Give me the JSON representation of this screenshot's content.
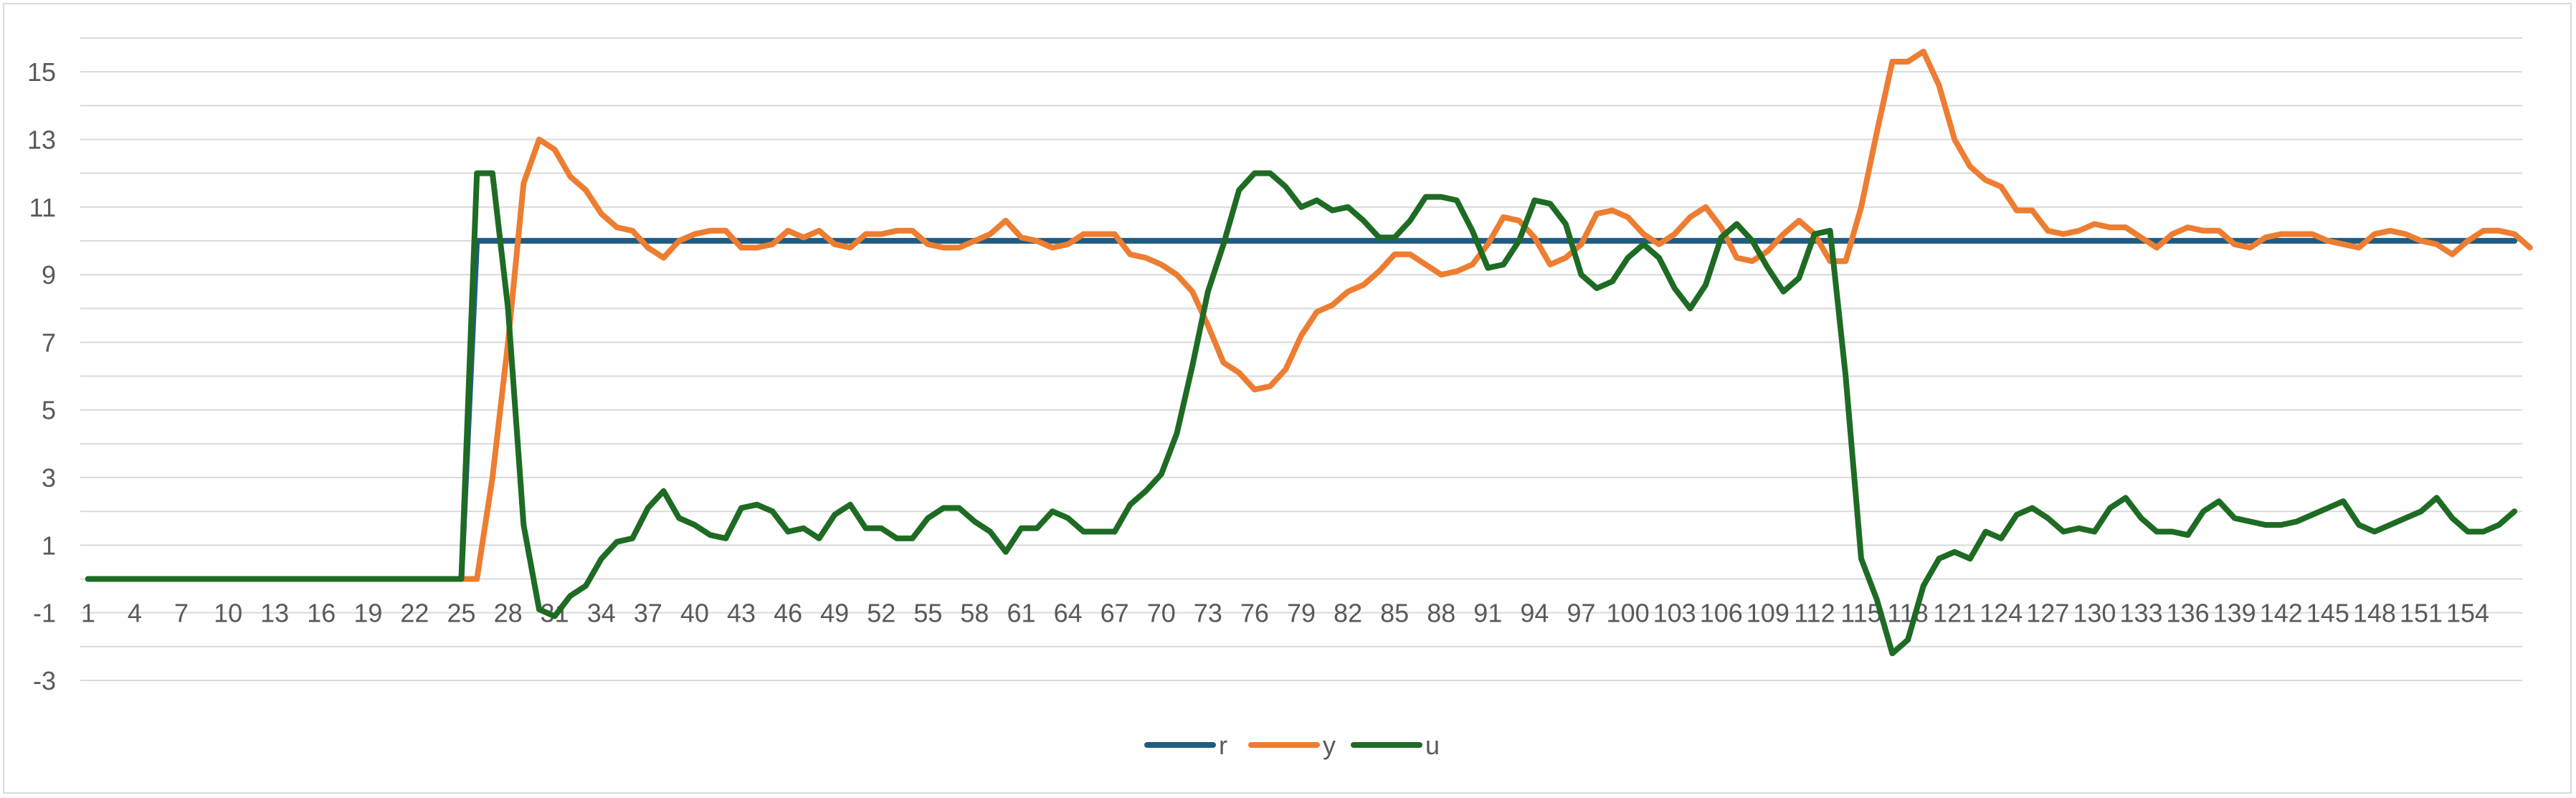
{
  "chart_data": {
    "type": "line",
    "title": "",
    "xlabel": "",
    "ylabel": "",
    "x_categories_count": 157,
    "x_tick_labels": [
      "1",
      "4",
      "7",
      "10",
      "13",
      "16",
      "19",
      "22",
      "25",
      "28",
      "31",
      "34",
      "37",
      "40",
      "43",
      "46",
      "49",
      "52",
      "55",
      "58",
      "61",
      "64",
      "67",
      "70",
      "73",
      "76",
      "79",
      "82",
      "85",
      "88",
      "91",
      "94",
      "97",
      "100",
      "103",
      "106",
      "109",
      "112",
      "115",
      "118",
      "121",
      "124",
      "127",
      "130",
      "133",
      "136",
      "139",
      "142",
      "145",
      "148",
      "151",
      "154"
    ],
    "x_tick_step": 3,
    "ylim": [
      -3,
      16
    ],
    "y_ticks": [
      15,
      13,
      11,
      9,
      7,
      5,
      3,
      1,
      -1,
      -3
    ],
    "y_gridlines": [
      16,
      15,
      14,
      13,
      12,
      11,
      10,
      9,
      8,
      7,
      6,
      5,
      4,
      3,
      2,
      1,
      0,
      -1,
      -2,
      -3
    ],
    "grid": true,
    "legend_position": "bottom",
    "series": [
      {
        "name": "r",
        "color": "#1f5c84",
        "values": [
          0,
          0,
          0,
          0,
          0,
          0,
          0,
          0,
          0,
          0,
          0,
          0,
          0,
          0,
          0,
          0,
          0,
          0,
          0,
          0,
          0,
          0,
          0,
          0,
          0,
          10,
          10,
          10,
          10,
          10,
          10,
          10,
          10,
          10,
          10,
          10,
          10,
          10,
          10,
          10,
          10,
          10,
          10,
          10,
          10,
          10,
          10,
          10,
          10,
          10,
          10,
          10,
          10,
          10,
          10,
          10,
          10,
          10,
          10,
          10,
          10,
          10,
          10,
          10,
          10,
          10,
          10,
          10,
          10,
          10,
          10,
          10,
          10,
          10,
          10,
          10,
          10,
          10,
          10,
          10,
          10,
          10,
          10,
          10,
          10,
          10,
          10,
          10,
          10,
          10,
          10,
          10,
          10,
          10,
          10,
          10,
          10,
          10,
          10,
          10,
          10,
          10,
          10,
          10,
          10,
          10,
          10,
          10,
          10,
          10,
          10,
          10,
          10,
          10,
          10,
          10,
          10,
          10,
          10,
          10,
          10,
          10,
          10,
          10,
          10,
          10,
          10,
          10,
          10,
          10,
          10,
          10,
          10,
          10,
          10,
          10,
          10,
          10,
          10,
          10,
          10,
          10,
          10,
          10,
          10,
          10,
          10,
          10,
          10,
          10,
          10,
          10,
          10,
          10,
          10,
          10,
          10
        ]
      },
      {
        "name": "y",
        "color": "#ed7d31",
        "values": [
          0,
          0,
          0,
          0,
          0,
          0,
          0,
          0,
          0,
          0,
          0,
          0,
          0,
          0,
          0,
          0,
          0,
          0,
          0,
          0,
          0,
          0,
          0,
          0,
          0,
          0,
          3,
          7,
          11.7,
          13,
          12.7,
          11.9,
          11.5,
          10.8,
          10.4,
          10.3,
          9.8,
          9.5,
          10,
          10.2,
          10.3,
          10.3,
          9.8,
          9.8,
          9.9,
          10.3,
          10.1,
          10.3,
          9.9,
          9.8,
          10.2,
          10.2,
          10.3,
          10.3,
          9.9,
          9.8,
          9.8,
          10,
          10.2,
          10.6,
          10.1,
          10,
          9.8,
          9.9,
          10.2,
          10.2,
          10.2,
          9.6,
          9.5,
          9.3,
          9,
          8.5,
          7.5,
          6.4,
          6.1,
          5.6,
          5.7,
          6.2,
          7.2,
          7.9,
          8.1,
          8.5,
          8.7,
          9.1,
          9.6,
          9.6,
          9.3,
          9,
          9.1,
          9.3,
          9.9,
          10.7,
          10.6,
          10.1,
          9.3,
          9.5,
          9.9,
          10.8,
          10.9,
          10.7,
          10.2,
          9.9,
          10.2,
          10.7,
          11,
          10.4,
          9.5,
          9.4,
          9.7,
          10.2,
          10.6,
          10.2,
          9.4,
          9.4,
          11,
          13.2,
          15.3,
          15.3,
          15.6,
          14.6,
          13,
          12.2,
          11.8,
          11.6,
          10.9,
          10.9,
          10.3,
          10.2,
          10.3,
          10.5,
          10.4,
          10.4,
          10.1,
          9.8,
          10.2,
          10.4,
          10.3,
          10.3,
          9.9,
          9.8,
          10.1,
          10.2,
          10.2,
          10.2,
          10,
          9.9,
          9.8,
          10.2,
          10.3,
          10.2,
          10,
          9.9,
          9.6,
          10,
          10.3,
          10.3,
          10.2,
          9.8
        ]
      },
      {
        "name": "u",
        "color": "#1e6b24",
        "values": [
          0,
          0,
          0,
          0,
          0,
          0,
          0,
          0,
          0,
          0,
          0,
          0,
          0,
          0,
          0,
          0,
          0,
          0,
          0,
          0,
          0,
          0,
          0,
          0,
          0,
          12,
          12,
          8,
          1.6,
          -0.9,
          -1.1,
          -0.5,
          -0.2,
          0.6,
          1.1,
          1.2,
          2.1,
          2.6,
          1.8,
          1.6,
          1.3,
          1.2,
          2.1,
          2.2,
          2,
          1.4,
          1.5,
          1.2,
          1.9,
          2.2,
          1.5,
          1.5,
          1.2,
          1.2,
          1.8,
          2.1,
          2.1,
          1.7,
          1.4,
          0.8,
          1.5,
          1.5,
          2,
          1.8,
          1.4,
          1.4,
          1.4,
          2.2,
          2.6,
          3.1,
          4.3,
          6.3,
          8.5,
          9.9,
          11.5,
          12,
          12,
          11.6,
          11,
          11.2,
          10.9,
          11,
          10.6,
          10.1,
          10.1,
          10.6,
          11.3,
          11.3,
          11.2,
          10.3,
          9.2,
          9.3,
          10,
          11.2,
          11.1,
          10.5,
          9,
          8.6,
          8.8,
          9.5,
          9.9,
          9.5,
          8.6,
          8,
          8.7,
          10.1,
          10.5,
          10,
          9.2,
          8.5,
          8.9,
          10.2,
          10.3,
          6,
          0.6,
          -0.6,
          -2.2,
          -1.8,
          -0.2,
          0.6,
          0.8,
          0.6,
          1.4,
          1.2,
          1.9,
          2.1,
          1.8,
          1.4,
          1.5,
          1.4,
          2.1,
          2.4,
          1.8,
          1.4,
          1.4,
          1.3,
          2,
          2.3,
          1.8,
          1.7,
          1.6,
          1.6,
          1.7,
          1.9,
          2.1,
          2.3,
          1.6,
          1.4,
          1.6,
          1.8,
          2,
          2.4,
          1.8,
          1.4,
          1.4,
          1.6,
          2
        ]
      }
    ]
  }
}
